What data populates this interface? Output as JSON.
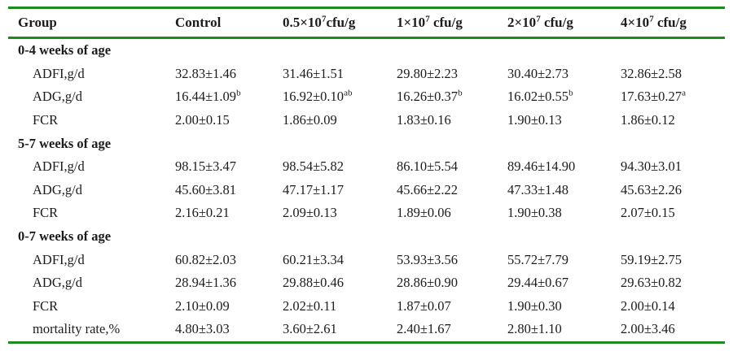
{
  "colors": {
    "rule_green": "#1e8b1e",
    "text": "#1c1c1c",
    "background": "#ffffff"
  },
  "table": {
    "columns": [
      "Group",
      "Control",
      "0.5×10^7^cfu/g",
      "1×10^7^ cfu/g",
      "2×10^7^ cfu/g",
      "4×10^7^ cfu/g"
    ],
    "sections": [
      {
        "header": "0-4 weeks of age",
        "rows": [
          {
            "label": "ADFI,g/d",
            "values": [
              "32.83±1.46",
              "31.46±1.51",
              "29.80±2.23",
              "30.40±2.73",
              "32.86±2.58"
            ]
          },
          {
            "label": "ADG,g/d",
            "values": [
              "16.44±1.09^b",
              "16.92±0.10^ab",
              "16.26±0.37^b",
              "16.02±0.55^b",
              "17.63±0.27^a"
            ]
          },
          {
            "label": "FCR",
            "values": [
              "2.00±0.15",
              "1.86±0.09",
              "1.83±0.16",
              "1.90±0.13",
              "1.86±0.12"
            ]
          }
        ]
      },
      {
        "header": "5-7 weeks of age",
        "rows": [
          {
            "label": "ADFI,g/d",
            "values": [
              "98.15±3.47",
              "98.54±5.82",
              "86.10±5.54",
              "89.46±14.90",
              "94.30±3.01"
            ]
          },
          {
            "label": "ADG,g/d",
            "values": [
              "45.60±3.81",
              "47.17±1.17",
              "45.66±2.22",
              "47.33±1.48",
              "45.63±2.26"
            ]
          },
          {
            "label": "FCR",
            "values": [
              "2.16±0.21",
              "2.09±0.13",
              "1.89±0.06",
              "1.90±0.38",
              "2.07±0.15"
            ]
          }
        ]
      },
      {
        "header": "0-7 weeks of age",
        "rows": [
          {
            "label": "ADFI,g/d",
            "values": [
              "60.82±2.03",
              "60.21±3.34",
              "53.93±3.56",
              "55.72±7.79",
              "59.19±2.75"
            ]
          },
          {
            "label": "ADG,g/d",
            "values": [
              "28.94±1.36",
              "29.88±0.46",
              "28.86±0.90",
              "29.44±0.67",
              "29.63±0.82"
            ]
          },
          {
            "label": "FCR",
            "values": [
              "2.10±0.09",
              "2.02±0.11",
              "1.87±0.07",
              "1.90±0.30",
              "2.00±0.14"
            ]
          },
          {
            "label": "mortality rate,%",
            "values": [
              "4.80±3.03",
              "3.60±2.61",
              "2.40±1.67",
              "2.80±1.10",
              "2.00±3.46"
            ]
          }
        ]
      }
    ]
  }
}
